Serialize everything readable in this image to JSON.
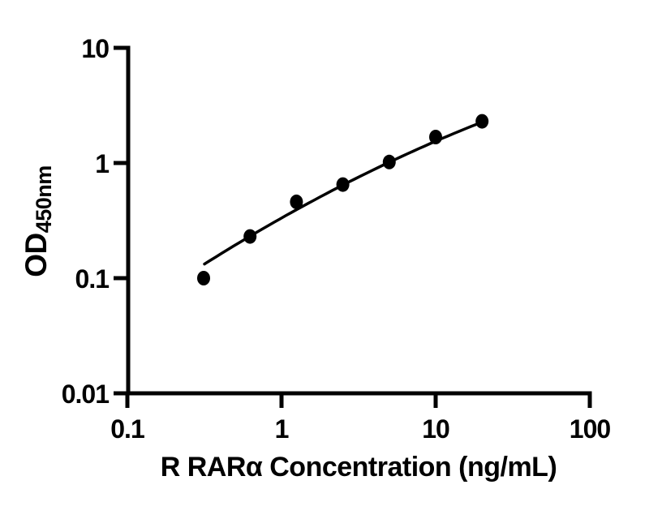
{
  "figure": {
    "background_color": "#ffffff",
    "ink_color": "#000000"
  },
  "chart_data": {
    "type": "scatter",
    "title": "",
    "xlabel": "R RARα Concentration (ng/mL)",
    "ylabel_main": "OD",
    "ylabel_sub": "450nm",
    "x_scale": "log",
    "y_scale": "log",
    "xlim": [
      0.1,
      100
    ],
    "ylim": [
      0.01,
      10
    ],
    "grid": false,
    "legend": null,
    "x_ticks": [
      {
        "value": 0.1,
        "label": "0.1"
      },
      {
        "value": 1,
        "label": "1"
      },
      {
        "value": 10,
        "label": "10"
      },
      {
        "value": 100,
        "label": "100"
      }
    ],
    "y_ticks": [
      {
        "value": 10,
        "label": "10"
      },
      {
        "value": 1,
        "label": "1"
      },
      {
        "value": 0.1,
        "label": "0.1"
      },
      {
        "value": 0.01,
        "label": "0.01"
      }
    ],
    "points": [
      {
        "x": 0.3125,
        "y": 0.1
      },
      {
        "x": 0.625,
        "y": 0.23
      },
      {
        "x": 1.25,
        "y": 0.46
      },
      {
        "x": 2.5,
        "y": 0.65
      },
      {
        "x": 5,
        "y": 1.02
      },
      {
        "x": 10,
        "y": 1.68
      },
      {
        "x": 20,
        "y": 2.3
      }
    ],
    "fit_curve": {
      "form": "log10(y) = a*u^2 + b*u + c, where u = log10(x)",
      "a": -0.088,
      "b": 0.755,
      "c": -0.478,
      "u_min": -0.5,
      "u_max": 1.305
    },
    "marker": {
      "shape": "circle",
      "color": "#000000",
      "rx": 8,
      "ry": 9
    }
  }
}
